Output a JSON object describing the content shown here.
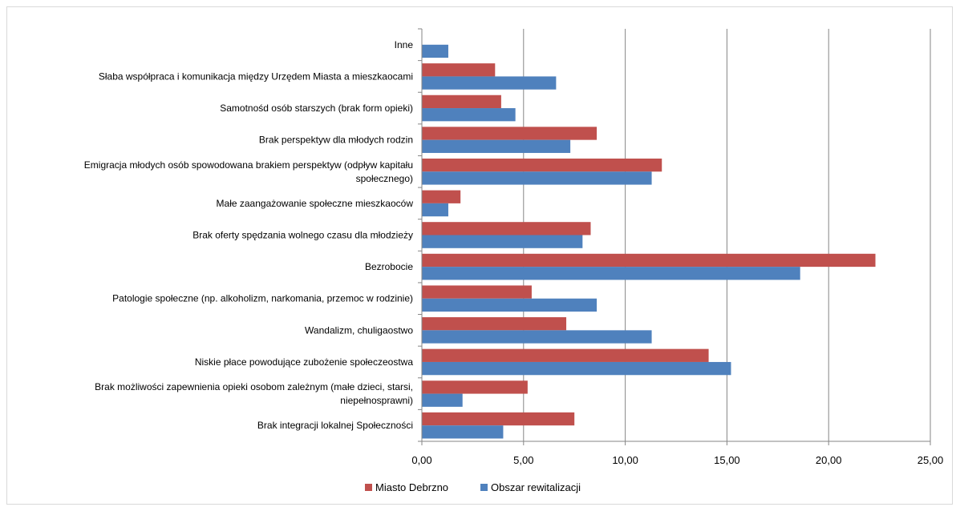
{
  "chart_data": {
    "type": "bar",
    "orientation": "horizontal",
    "categories": [
      "Inne",
      "Słaba współpraca i komunikacja między Urzędem Miasta a mieszkaocami",
      "Samotnośd osób starszych (brak form opieki)",
      "Brak perspektyw dla młodych rodzin",
      "Emigracja młodych osób spowodowana brakiem perspektyw (odpływ kapitału społecznego)",
      "Małe zaangażowanie społeczne mieszkaoców",
      "Brak oferty spędzania wolnego czasu dla młodzieży",
      "Bezrobocie",
      "Patologie społeczne (np. alkoholizm, narkomania, przemoc w rodzinie)",
      "Wandalizm, chuligaostwo",
      "Niskie płace powodujące zubożenie społeczeostwa",
      "Brak możliwości zapewnienia opieki osobom zależnym (małe dzieci, starsi, niepełnosprawni)",
      "Brak integracji lokalnej Społeczności"
    ],
    "category_lines": [
      [
        "Inne"
      ],
      [
        "Słaba współpraca i komunikacja między Urzędem Miasta a mieszkaocami"
      ],
      [
        "Samotnośd osób starszych (brak form opieki)"
      ],
      [
        "Brak perspektyw dla młodych rodzin"
      ],
      [
        "Emigracja młodych osób spowodowana brakiem perspektyw (odpływ kapitału",
        "społecznego)"
      ],
      [
        "Małe zaangażowanie społeczne mieszkaoców"
      ],
      [
        "Brak oferty spędzania wolnego czasu dla młodzieży"
      ],
      [
        "Bezrobocie"
      ],
      [
        "Patologie społeczne (np. alkoholizm, narkomania, przemoc w rodzinie)"
      ],
      [
        "Wandalizm, chuligaostwo"
      ],
      [
        "Niskie płace powodujące zubożenie społeczeostwa"
      ],
      [
        "Brak możliwości zapewnienia opieki osobom zależnym (małe dzieci, starsi,",
        "niepełnosprawni)"
      ],
      [
        "Brak integracji lokalnej Społeczności"
      ]
    ],
    "series": [
      {
        "name": "Miasto Debrzno",
        "color": "#c0504d",
        "values": [
          0,
          3.6,
          3.9,
          8.6,
          11.8,
          1.9,
          8.3,
          22.3,
          5.4,
          7.1,
          14.1,
          5.2,
          7.5
        ]
      },
      {
        "name": "Obszar rewitalizacji",
        "color": "#4f81bd",
        "values": [
          1.3,
          6.6,
          4.6,
          7.3,
          11.3,
          1.3,
          7.9,
          18.6,
          8.6,
          11.3,
          15.2,
          2.0,
          4.0
        ]
      }
    ],
    "xlim": [
      0,
      25
    ],
    "xticks": [
      "0,00",
      "5,00",
      "10,00",
      "15,00",
      "20,00",
      "25,00"
    ],
    "grid": "vertical",
    "legend": "bottom-center",
    "title": "",
    "xlabel": "",
    "ylabel": ""
  }
}
